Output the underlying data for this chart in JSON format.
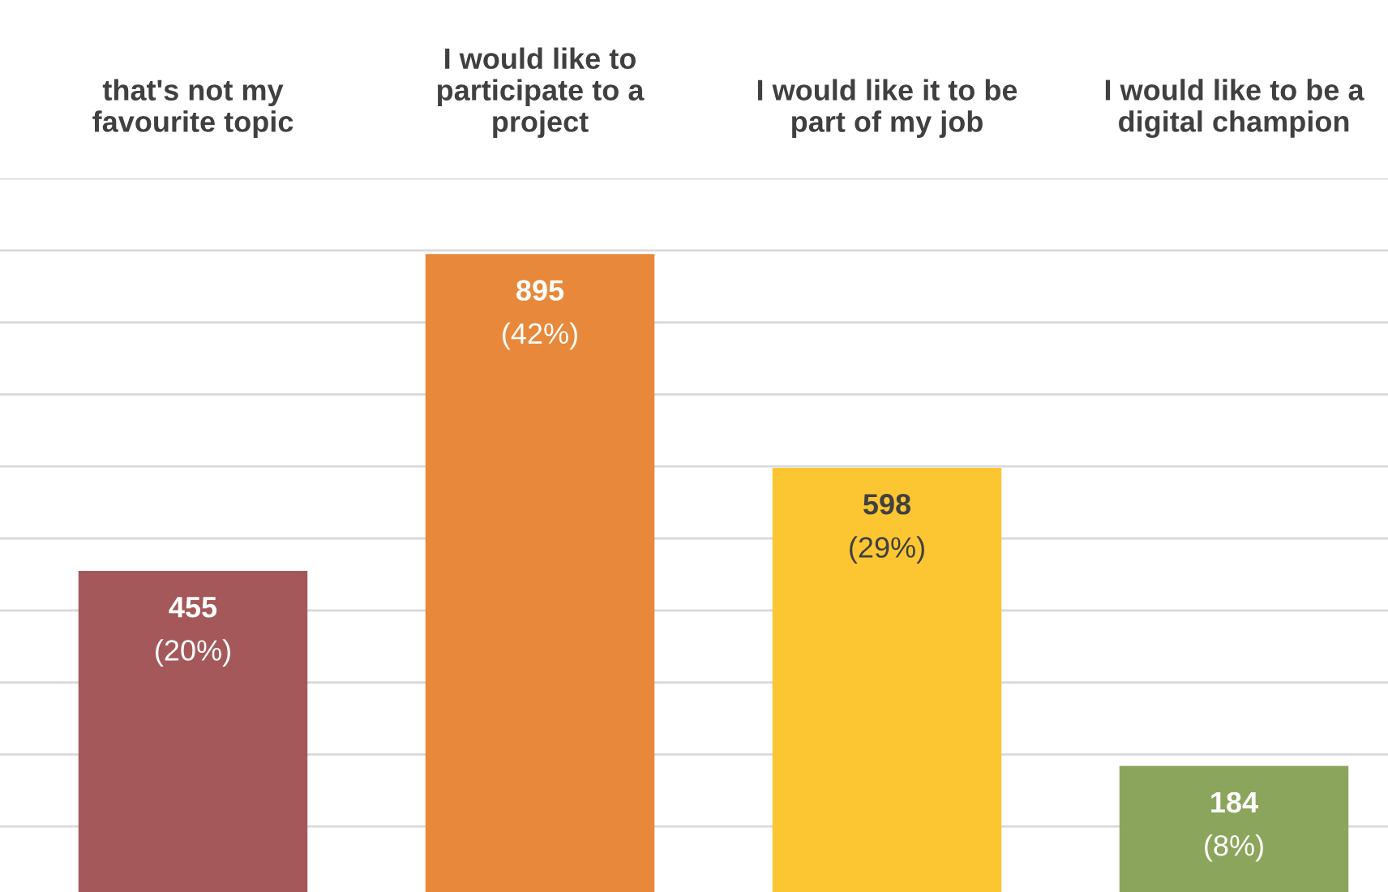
{
  "chart_data": {
    "type": "bar",
    "categories": [
      "that's not my\nfavourite topic",
      "I would like to\nparticipate to a\nproject",
      "I would like it to be\npart of my job",
      "I would like to be a\ndigital champion"
    ],
    "values": [
      455,
      895,
      598,
      184
    ],
    "colors": [
      "#a5585a",
      "#e8883a",
      "#fcc632",
      "#8ca55c"
    ],
    "value_labels": [
      "455\n(20%)",
      "895\n(42%)",
      "598\n(29%)",
      "184\n(8%)"
    ],
    "ylim": [
      0,
      1000
    ],
    "yticks": [
      {
        "value": 100,
        "label": null
      },
      {
        "value": 200,
        "label": null
      },
      {
        "value": 300,
        "label": null
      },
      {
        "value": 400,
        "label": null
      },
      {
        "value": 500,
        "label": null
      },
      {
        "value": 600,
        "label": null
      },
      {
        "value": 700,
        "label": null
      },
      {
        "value": 800,
        "label": null
      },
      {
        "value": 900,
        "label": null
      },
      {
        "value": 1000,
        "label": null
      }
    ],
    "grid": "y"
  }
}
